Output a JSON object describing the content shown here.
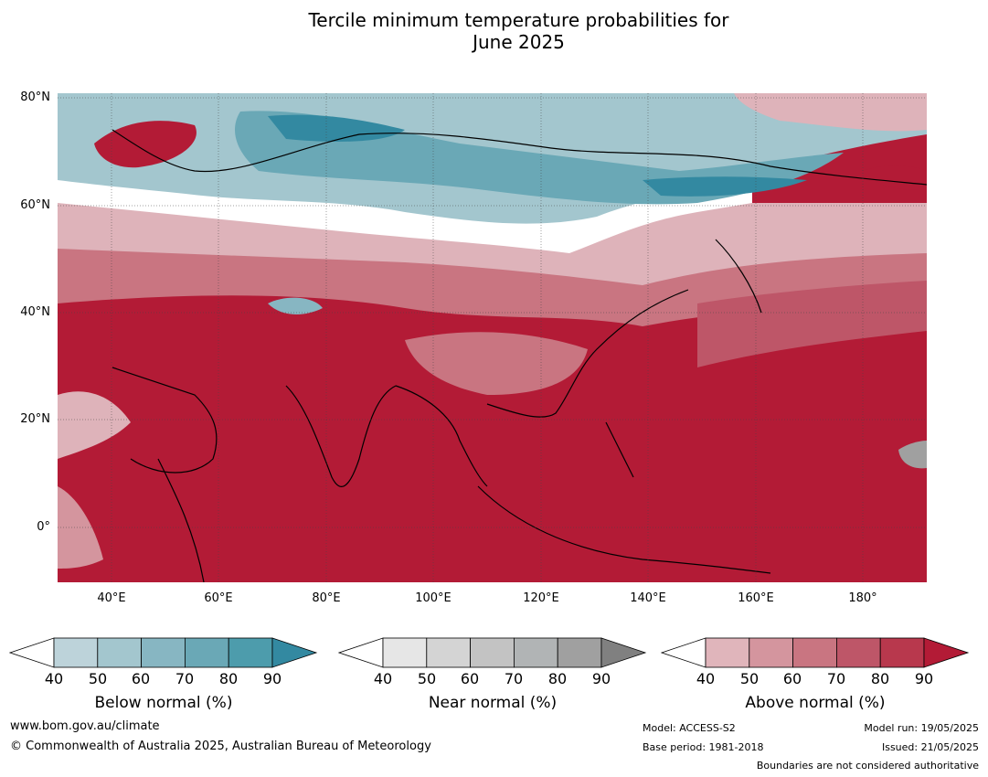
{
  "title_line1": "Tercile minimum temperature probabilities for",
  "title_line2": "June 2025",
  "map": {
    "lat_labels": [
      "80°N",
      "60°N",
      "40°N",
      "20°N",
      "0°"
    ],
    "lon_labels": [
      "40°E",
      "60°E",
      "80°E",
      "100°E",
      "120°E",
      "140°E",
      "160°E",
      "180°"
    ],
    "colors": {
      "ocean_warm": "#b31b36",
      "below_core": "#3f9bb0",
      "near_light": "#e6e6e6",
      "above_light": "#deb3ba"
    }
  },
  "legends": [
    {
      "label": "Below normal (%)",
      "ticks": [
        "40",
        "50",
        "60",
        "70",
        "80",
        "90"
      ],
      "colors": [
        "#ffffff",
        "#bdd3da",
        "#a3c6ce",
        "#87b6c2",
        "#6aa8b6",
        "#4d9cac",
        "#3389a1"
      ]
    },
    {
      "label": "Near normal (%)",
      "ticks": [
        "40",
        "50",
        "60",
        "70",
        "80",
        "90"
      ],
      "colors": [
        "#ffffff",
        "#e6e6e6",
        "#d4d4d4",
        "#c3c3c3",
        "#b1b4b5",
        "#a0a0a0",
        "#808080"
      ]
    },
    {
      "label": "Above normal (%)",
      "ticks": [
        "40",
        "50",
        "60",
        "70",
        "80",
        "90"
      ],
      "colors": [
        "#ffffff",
        "#e0b5bb",
        "#d4959e",
        "#c97581",
        "#be5668",
        "#b8384d",
        "#b31b36"
      ]
    }
  ],
  "footer": {
    "url": "www.bom.gov.au/climate",
    "copyright": "© Commonwealth of Australia 2025, Australian Bureau of Meteorology",
    "model": "Model: ACCESS-S2",
    "base_period": "Base period: 1981-2018",
    "model_run": "Model run: 19/05/2025",
    "issued": "Issued: 21/05/2025",
    "boundaries": "Boundaries are not considered authoritative"
  }
}
